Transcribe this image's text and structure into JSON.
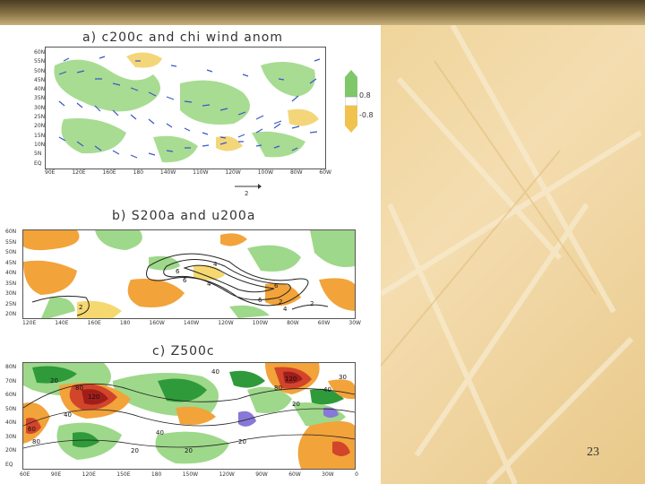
{
  "slide": {
    "page_number": "23"
  },
  "panels": [
    {
      "id": "a",
      "title": "a) c200c and chi wind anom",
      "y_ticks": [
        "60N",
        "55N",
        "50N",
        "45N",
        "40N",
        "35N",
        "30N",
        "25N",
        "20N",
        "15N",
        "10N",
        "5N",
        "EQ"
      ],
      "x_ticks": [
        "90E",
        "120E",
        "160E",
        "180",
        "140W",
        "110W",
        "120W",
        "100W",
        "80W",
        "60W"
      ],
      "colorbar": {
        "top_label": "0.8",
        "bottom_label": "-0.8"
      },
      "vector_scale_label": "2"
    },
    {
      "id": "b",
      "title": "b) S200a and u200a",
      "y_ticks": [
        "60N",
        "55N",
        "50N",
        "45N",
        "40N",
        "35N",
        "30N",
        "25N",
        "20N"
      ],
      "x_ticks": [
        "120E",
        "140E",
        "160E",
        "180",
        "160W",
        "140W",
        "120W",
        "100W",
        "80W",
        "60W",
        "30W"
      ],
      "contour_labels": [
        "4",
        "6",
        "6",
        "4",
        "6",
        "4",
        "6",
        "2",
        "2",
        "2"
      ]
    },
    {
      "id": "c",
      "title": "c) Z500c",
      "y_ticks": [
        "80N",
        "70N",
        "60N",
        "50N",
        "40N",
        "30N",
        "20N",
        "EQ"
      ],
      "x_ticks": [
        "60E",
        "90E",
        "120E",
        "150E",
        "180",
        "150W",
        "120W",
        "90W",
        "60W",
        "30W",
        "0"
      ],
      "contour_labels": [
        "120",
        "80",
        "40",
        "20",
        "120",
        "80",
        "40",
        "40",
        "20",
        "60",
        "80",
        "30",
        "40",
        "20",
        "20",
        "20"
      ]
    }
  ],
  "colors": {
    "positive": "#f2a33a",
    "positive_strong": "#d2452a",
    "negative": "#9ed88a",
    "negative_strong": "#2f9a3a",
    "vector": "#3a58c8",
    "purple": "#8878d8"
  }
}
